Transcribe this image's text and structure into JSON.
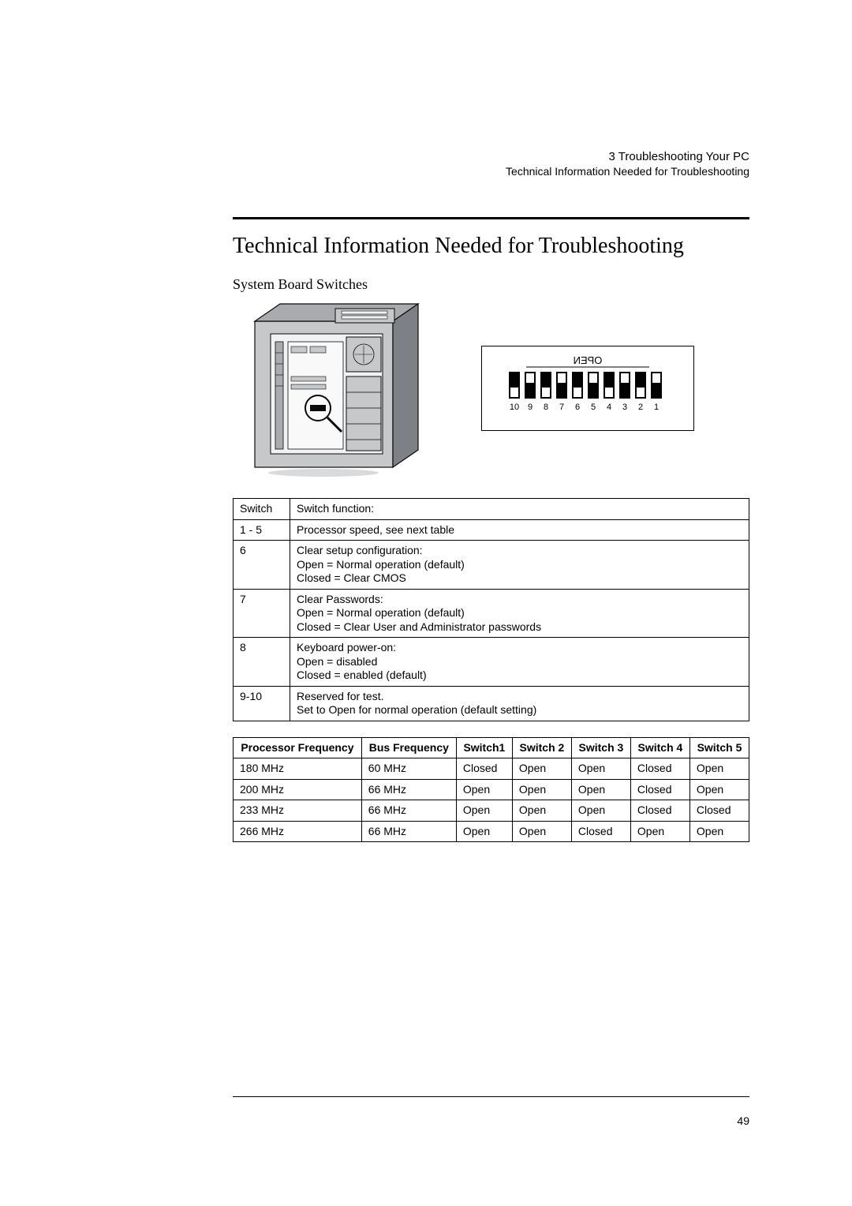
{
  "header": {
    "chapter": "3  Troubleshooting Your PC",
    "running": "Technical Information Needed for Troubleshooting"
  },
  "title": "Technical Information Needed for Troubleshooting",
  "subtitle": "System Board Switches",
  "switch_table": {
    "head": {
      "c1": "Switch",
      "c2": "Switch function:"
    },
    "rows": [
      {
        "c1": "1 - 5",
        "c2": "Processor speed, see next table"
      },
      {
        "c1": "6",
        "c2": "Clear setup configuration:\nOpen = Normal operation (default)\nClosed = Clear CMOS"
      },
      {
        "c1": "7",
        "c2": "Clear Passwords:\nOpen = Normal operation (default)\nClosed = Clear User and Administrator passwords"
      },
      {
        "c1": "8",
        "c2": "Keyboard power-on:\nOpen = disabled\nClosed = enabled (default)"
      },
      {
        "c1": "9-10",
        "c2": "Reserved for test.\nSet to Open for normal operation (default setting)"
      }
    ]
  },
  "freq_table": {
    "head": {
      "c1": "Processor Frequency",
      "c2": "Bus Frequency",
      "c3": "Switch1",
      "c4": "Switch 2",
      "c5": "Switch 3",
      "c6": "Switch 4",
      "c7": "Switch 5"
    },
    "rows": [
      {
        "c1": "180 MHz",
        "c2": "60 MHz",
        "c3": "Closed",
        "c4": "Open",
        "c5": "Open",
        "c6": "Closed",
        "c7": "Open"
      },
      {
        "c1": "200 MHz",
        "c2": "66 MHz",
        "c3": "Open",
        "c4": "Open",
        "c5": "Open",
        "c6": "Closed",
        "c7": "Open"
      },
      {
        "c1": "233 MHz",
        "c2": "66 MHz",
        "c3": "Open",
        "c4": "Open",
        "c5": "Open",
        "c6": "Closed",
        "c7": "Closed"
      },
      {
        "c1": "266 MHz",
        "c2": "66 MHz",
        "c3": "Open",
        "c4": "Open",
        "c5": "Closed",
        "c6": "Open",
        "c7": "Open"
      }
    ]
  },
  "dip": {
    "label": "OPEN",
    "positions": [
      "1",
      "2",
      "3",
      "4",
      "5",
      "6",
      "7",
      "8",
      "9",
      "10"
    ],
    "open_color": "#020202",
    "body_color": "#020202",
    "bg": "#ffffff"
  },
  "chassis": {
    "outline": "#0a0a0a",
    "fill_light": "#c7c8ca",
    "fill_mid": "#a9abae",
    "fill_dark": "#7d8084",
    "inner": "#f1f2f3"
  },
  "page_number": "49"
}
